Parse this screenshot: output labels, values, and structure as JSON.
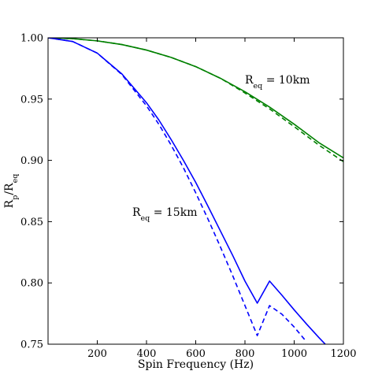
{
  "chart_data": {
    "type": "line",
    "title": "",
    "xlabel": "Spin Frequency (Hz)",
    "ylabel": {
      "base": "R",
      "sub1": "p",
      "sep": "/R",
      "sub2": "eq"
    },
    "xlim": [
      0,
      1200
    ],
    "ylim": [
      0.75,
      1.0
    ],
    "x_ticks": [
      200,
      400,
      600,
      800,
      1000,
      1200
    ],
    "y_ticks": [
      0.75,
      0.8,
      0.85,
      0.9,
      0.95,
      1.0
    ],
    "y_tick_labels": [
      "0.75",
      "0.80",
      "0.85",
      "0.90",
      "0.95",
      "1.00"
    ],
    "grid": false,
    "series": [
      {
        "color": "#008000",
        "style": "solid",
        "x": [
          0,
          100,
          200,
          300,
          400,
          500,
          600,
          700,
          800,
          900,
          1000,
          1100,
          1200
        ],
        "y": [
          1.0,
          0.9993,
          0.9975,
          0.9945,
          0.99,
          0.984,
          0.9765,
          0.967,
          0.956,
          0.9435,
          0.9295,
          0.9145,
          0.902
        ]
      },
      {
        "color": "#008000",
        "style": "dashed",
        "x": [
          0,
          100,
          200,
          300,
          400,
          500,
          600,
          700,
          800,
          900,
          1000,
          1100,
          1200
        ],
        "y": [
          1.0,
          0.9993,
          0.9975,
          0.9945,
          0.99,
          0.984,
          0.9765,
          0.967,
          0.955,
          0.942,
          0.9275,
          0.9125,
          0.899
        ]
      },
      {
        "color": "#0000ff",
        "style": "solid",
        "x": [
          0,
          100,
          200,
          300,
          400,
          450,
          500,
          550,
          600,
          650,
          700,
          750,
          800,
          850,
          900,
          950,
          1000,
          1050,
          1100,
          1150,
          1180
        ],
        "y": [
          1.0,
          0.997,
          0.9875,
          0.9705,
          0.947,
          0.933,
          0.917,
          0.9,
          0.882,
          0.8625,
          0.8425,
          0.8225,
          0.8015,
          0.7835,
          0.8015,
          0.79,
          0.778,
          0.7665,
          0.7555,
          0.745,
          0.739
        ]
      },
      {
        "color": "#0000ff",
        "style": "dashed",
        "x": [
          0,
          100,
          200,
          300,
          400,
          450,
          500,
          550,
          600,
          650,
          700,
          750,
          800,
          850,
          900,
          950,
          1000,
          1050
        ],
        "y": [
          1.0,
          0.997,
          0.9875,
          0.97,
          0.9445,
          0.9295,
          0.9125,
          0.894,
          0.8735,
          0.852,
          0.8295,
          0.806,
          0.7815,
          0.757,
          0.7815,
          0.7745,
          0.764,
          0.752
        ]
      }
    ],
    "annotations": [
      {
        "text": "R",
        "sub": "eq",
        "rest": " = 10km",
        "x": 790,
        "y": 0.9635
      },
      {
        "text": "R",
        "sub": "eq",
        "rest": " = 15km",
        "x": 345,
        "y": 0.8555
      }
    ]
  }
}
